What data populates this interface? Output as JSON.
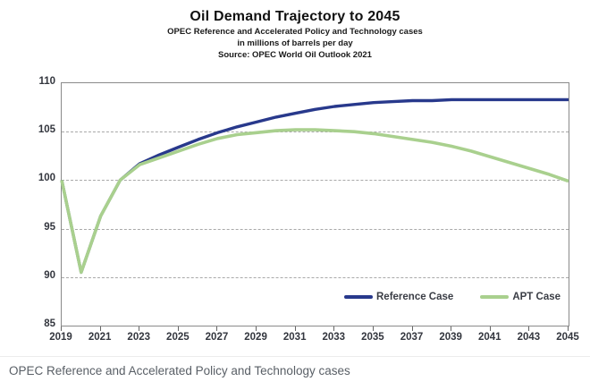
{
  "header": {
    "title": "Oil Demand Trajectory to 2045",
    "subtitle1": "OPEC Reference and Accelerated Policy and Technology cases",
    "subtitle2": "in millions of barrels per day",
    "subtitle3": "Source: OPEC World Oil Outlook 2021"
  },
  "caption": "OPEC Reference and Accelerated Policy and Technology cases",
  "legend": {
    "reference_label": "Reference Case",
    "apt_label": "APT Case"
  },
  "colors": {
    "reference_line": "#28398c",
    "apt_line": "#a9d08e",
    "grid": "#a9a9a9",
    "plot_border": "#8a8a8a",
    "caption_text": "#595f66"
  },
  "chart_data": {
    "type": "line",
    "title": "Oil Demand Trajectory to 2045",
    "subtitle": "OPEC Reference and Accelerated Policy and Technology cases, in millions of barrels per day, Source: OPEC World Oil Outlook 2021",
    "xlabel": "",
    "ylabel": "millions of barrels per day",
    "xlim": [
      2019,
      2045
    ],
    "ylim": [
      85,
      110
    ],
    "x_ticks": [
      2019,
      2021,
      2023,
      2025,
      2027,
      2029,
      2031,
      2033,
      2035,
      2037,
      2039,
      2041,
      2043,
      2045
    ],
    "y_ticks": [
      85,
      90,
      95,
      100,
      105,
      110
    ],
    "grid": "horizontal-dashed",
    "legend_position": "inside-bottom-right",
    "x": [
      2019,
      2020,
      2021,
      2022,
      2023,
      2024,
      2025,
      2026,
      2027,
      2028,
      2029,
      2030,
      2031,
      2032,
      2033,
      2034,
      2035,
      2036,
      2037,
      2038,
      2039,
      2040,
      2041,
      2042,
      2043,
      2044,
      2045
    ],
    "series": [
      {
        "name": "Reference Case",
        "color": "#28398c",
        "width": 3.4,
        "values": [
          100.0,
          90.5,
          96.3,
          100.0,
          101.7,
          102.6,
          103.4,
          104.2,
          104.9,
          105.5,
          106.0,
          106.5,
          106.9,
          107.3,
          107.6,
          107.8,
          108.0,
          108.1,
          108.2,
          108.2,
          108.3,
          108.3,
          108.3,
          108.3,
          108.3,
          108.3,
          108.3
        ]
      },
      {
        "name": "APT Case",
        "color": "#a9d08e",
        "width": 3.6,
        "values": [
          100.0,
          90.5,
          96.3,
          100.0,
          101.6,
          102.3,
          103.0,
          103.7,
          104.3,
          104.7,
          104.9,
          105.1,
          105.2,
          105.2,
          105.1,
          105.0,
          104.8,
          104.5,
          104.2,
          103.9,
          103.5,
          103.0,
          102.4,
          101.8,
          101.2,
          100.6,
          99.9
        ]
      }
    ]
  }
}
